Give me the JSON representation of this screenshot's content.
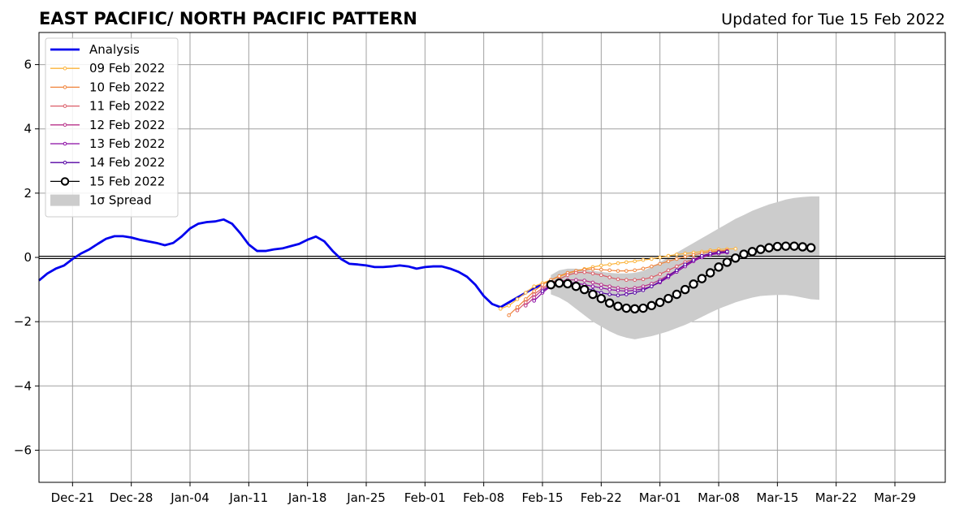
{
  "chart_data": {
    "type": "line",
    "title": "EAST PACIFIC/ NORTH PACIFIC PATTERN",
    "subtitle": "Updated for Tue 15 Feb 2022",
    "ylim": [
      -7,
      7
    ],
    "yticks": [
      {
        "value": 6,
        "label": "6"
      },
      {
        "value": 4,
        "label": "4"
      },
      {
        "value": 2,
        "label": "2"
      },
      {
        "value": 0,
        "label": "0"
      },
      {
        "value": -2,
        "label": "−2"
      },
      {
        "value": -4,
        "label": "−4"
      },
      {
        "value": -6,
        "label": "−6"
      }
    ],
    "xlim": [
      "2021-12-17",
      "2022-04-04"
    ],
    "xticks": [
      {
        "date": "2021-12-21",
        "label": "Dec-21"
      },
      {
        "date": "2021-12-28",
        "label": "Dec-28"
      },
      {
        "date": "2022-01-04",
        "label": "Jan-04"
      },
      {
        "date": "2022-01-11",
        "label": "Jan-11"
      },
      {
        "date": "2022-01-18",
        "label": "Jan-18"
      },
      {
        "date": "2022-01-25",
        "label": "Jan-25"
      },
      {
        "date": "2022-02-01",
        "label": "Feb-01"
      },
      {
        "date": "2022-02-08",
        "label": "Feb-08"
      },
      {
        "date": "2022-02-15",
        "label": "Feb-15"
      },
      {
        "date": "2022-02-22",
        "label": "Feb-22"
      },
      {
        "date": "2022-03-01",
        "label": "Mar-01"
      },
      {
        "date": "2022-03-08",
        "label": "Mar-08"
      },
      {
        "date": "2022-03-15",
        "label": "Mar-15"
      },
      {
        "date": "2022-03-22",
        "label": "Mar-22"
      },
      {
        "date": "2022-03-29",
        "label": "Mar-29"
      }
    ],
    "grid": true,
    "legend_position": "top-left",
    "analysis": {
      "name": "Analysis",
      "color": "#0000ee",
      "start": "2021-12-17",
      "values": [
        -0.72,
        -0.5,
        -0.35,
        -0.25,
        -0.05,
        0.12,
        0.25,
        0.42,
        0.58,
        0.66,
        0.66,
        0.62,
        0.55,
        0.5,
        0.45,
        0.38,
        0.45,
        0.65,
        0.9,
        1.05,
        1.1,
        1.12,
        1.18,
        1.05,
        0.75,
        0.4,
        0.2,
        0.2,
        0.25,
        0.28,
        0.35,
        0.42,
        0.55,
        0.65,
        0.5,
        0.2,
        -0.05,
        -0.2,
        -0.22,
        -0.25,
        -0.3,
        -0.3,
        -0.28,
        -0.25,
        -0.28,
        -0.35,
        -0.3,
        -0.28,
        -0.28,
        -0.35,
        -0.45,
        -0.6,
        -0.85,
        -1.2,
        -1.45,
        -1.55,
        -1.4,
        -1.25,
        -1.1,
        -0.95,
        -0.85
      ]
    },
    "forecasts": [
      {
        "name": "09 Feb 2022",
        "color": "#fbb33a",
        "start": "2022-02-10",
        "values": [
          -1.6,
          -1.5,
          -1.3,
          -1.1,
          -0.9,
          -0.8,
          -0.7,
          -0.6,
          -0.5,
          -0.42,
          -0.36,
          -0.3,
          -0.25,
          -0.22,
          -0.18,
          -0.15,
          -0.12,
          -0.08,
          -0.05,
          0.0,
          0.05,
          0.09,
          0.12,
          0.15,
          0.18,
          0.22,
          0.25,
          0.26,
          0.27
        ]
      },
      {
        "name": "10 Feb 2022",
        "color": "#f0833a",
        "start": "2022-02-11",
        "values": [
          -1.8,
          -1.55,
          -1.3,
          -1.05,
          -0.85,
          -0.7,
          -0.58,
          -0.48,
          -0.42,
          -0.38,
          -0.36,
          -0.38,
          -0.4,
          -0.42,
          -0.42,
          -0.4,
          -0.35,
          -0.28,
          -0.2,
          -0.12,
          -0.05,
          0.02,
          0.08,
          0.13,
          0.18,
          0.2,
          0.22
        ]
      },
      {
        "name": "11 Feb 2022",
        "color": "#db5c68",
        "start": "2022-02-12",
        "values": [
          -1.65,
          -1.4,
          -1.15,
          -0.95,
          -0.8,
          -0.68,
          -0.55,
          -0.48,
          -0.46,
          -0.5,
          -0.55,
          -0.62,
          -0.68,
          -0.7,
          -0.7,
          -0.68,
          -0.62,
          -0.52,
          -0.4,
          -0.28,
          -0.15,
          -0.05,
          0.05,
          0.12,
          0.18,
          0.2
        ]
      },
      {
        "name": "12 Feb 2022",
        "color": "#b83289",
        "start": "2022-02-13",
        "values": [
          -1.5,
          -1.25,
          -1.0,
          -0.85,
          -0.75,
          -0.7,
          -0.7,
          -0.72,
          -0.78,
          -0.85,
          -0.9,
          -0.95,
          -0.98,
          -0.95,
          -0.9,
          -0.82,
          -0.7,
          -0.55,
          -0.4,
          -0.25,
          -0.1,
          0.02,
          0.1,
          0.15,
          0.18
        ]
      },
      {
        "name": "13 Feb 2022",
        "color": "#8b0aa5",
        "start": "2022-02-14",
        "values": [
          -1.35,
          -1.1,
          -0.9,
          -0.8,
          -0.78,
          -0.8,
          -0.85,
          -0.9,
          -0.95,
          -1.0,
          -1.03,
          -1.05,
          -1.02,
          -0.98,
          -0.9,
          -0.78,
          -0.62,
          -0.45,
          -0.28,
          -0.12,
          0.0,
          0.08,
          0.12,
          0.15
        ]
      },
      {
        "name": "14 Feb 2022",
        "color": "#5402a3",
        "start": "2022-02-15",
        "values": [
          -1.05,
          -0.88,
          -0.8,
          -0.82,
          -0.88,
          -0.95,
          -1.02,
          -1.1,
          -1.15,
          -1.18,
          -1.15,
          -1.1,
          -1.02,
          -0.9,
          -0.75,
          -0.58,
          -0.4,
          -0.22,
          -0.08,
          0.05,
          0.12,
          0.16,
          0.18
        ]
      },
      {
        "name": "15 Feb 2022",
        "color": "#000000",
        "start": "2022-02-16",
        "values": [
          -0.85,
          -0.8,
          -0.82,
          -0.9,
          -1.0,
          -1.15,
          -1.28,
          -1.42,
          -1.52,
          -1.58,
          -1.6,
          -1.58,
          -1.5,
          -1.4,
          -1.28,
          -1.15,
          -1.0,
          -0.83,
          -0.66,
          -0.48,
          -0.3,
          -0.15,
          -0.02,
          0.1,
          0.18,
          0.25,
          0.3,
          0.34,
          0.35,
          0.35,
          0.33,
          0.3
        ]
      }
    ],
    "spread": {
      "name": "1σ Spread",
      "color": "#cccccc",
      "start": "2022-02-16",
      "upper": [
        -0.55,
        -0.4,
        -0.35,
        -0.35,
        -0.38,
        -0.42,
        -0.45,
        -0.48,
        -0.5,
        -0.5,
        -0.48,
        -0.42,
        -0.3,
        -0.15,
        0.0,
        0.15,
        0.3,
        0.45,
        0.6,
        0.75,
        0.9,
        1.05,
        1.2,
        1.32,
        1.45,
        1.55,
        1.65,
        1.72,
        1.8,
        1.85,
        1.88,
        1.9,
        1.9
      ],
      "lower": [
        -1.15,
        -1.25,
        -1.4,
        -1.6,
        -1.8,
        -2.0,
        -2.15,
        -2.3,
        -2.42,
        -2.5,
        -2.55,
        -2.5,
        -2.45,
        -2.38,
        -2.3,
        -2.2,
        -2.1,
        -1.98,
        -1.85,
        -1.72,
        -1.6,
        -1.5,
        -1.4,
        -1.32,
        -1.25,
        -1.2,
        -1.18,
        -1.17,
        -1.17,
        -1.2,
        -1.25,
        -1.3,
        -1.32
      ]
    }
  }
}
